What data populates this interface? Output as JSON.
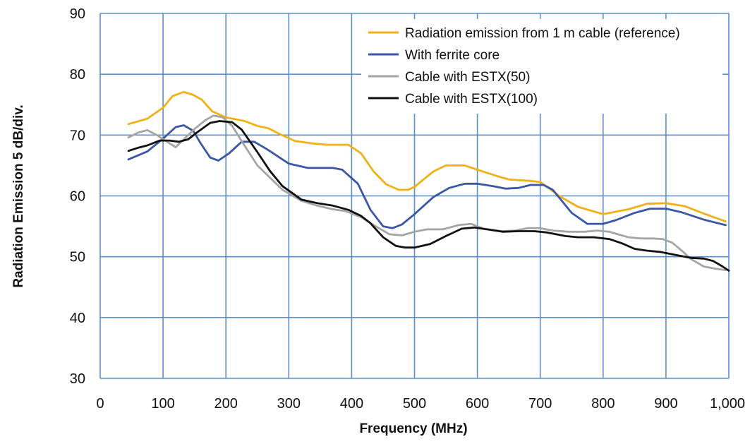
{
  "chart_data": {
    "type": "line",
    "title": "",
    "xlabel": "Frequency (MHz)",
    "ylabel": "Radiation Emission 5 dB/div.",
    "xlim": [
      0,
      1000
    ],
    "ylim": [
      30,
      90
    ],
    "x_ticks": [
      0,
      100,
      200,
      300,
      400,
      500,
      600,
      700,
      800,
      900,
      1000
    ],
    "x_tick_labels": [
      "0",
      "100",
      "200",
      "300",
      "400",
      "500",
      "600",
      "700",
      "800",
      "900",
      "1,000"
    ],
    "y_ticks": [
      30,
      40,
      50,
      60,
      70,
      80,
      90
    ],
    "y_tick_labels": [
      "30",
      "40",
      "50",
      "60",
      "70",
      "80",
      "90"
    ],
    "grid": true,
    "grid_color": "#5b8ec9",
    "legend_position": "top-right",
    "series": [
      {
        "name": "Radiation emission from 1 m cable (reference)",
        "color": "#f0b117",
        "points": [
          [
            45,
            71.8
          ],
          [
            75,
            72.7
          ],
          [
            100,
            74.5
          ],
          [
            115,
            76.4
          ],
          [
            133,
            77.1
          ],
          [
            148,
            76.6
          ],
          [
            162,
            75.8
          ],
          [
            178,
            73.9
          ],
          [
            200,
            72.9
          ],
          [
            230,
            72.3
          ],
          [
            250,
            71.5
          ],
          [
            268,
            71.1
          ],
          [
            285,
            70.2
          ],
          [
            310,
            69
          ],
          [
            340,
            68.6
          ],
          [
            360,
            68.4
          ],
          [
            375,
            68.4
          ],
          [
            395,
            68.4
          ],
          [
            415,
            67
          ],
          [
            435,
            64
          ],
          [
            455,
            61.9
          ],
          [
            475,
            61
          ],
          [
            490,
            61
          ],
          [
            500,
            61.5
          ],
          [
            530,
            64
          ],
          [
            550,
            65
          ],
          [
            580,
            65
          ],
          [
            600,
            64.3
          ],
          [
            630,
            63.3
          ],
          [
            650,
            62.7
          ],
          [
            680,
            62.5
          ],
          [
            700,
            62.3
          ],
          [
            730,
            60
          ],
          [
            760,
            58.2
          ],
          [
            800,
            57
          ],
          [
            840,
            57.8
          ],
          [
            870,
            58.7
          ],
          [
            900,
            58.8
          ],
          [
            930,
            58.3
          ],
          [
            960,
            57.1
          ],
          [
            995,
            55.8
          ]
        ]
      },
      {
        "name": "With ferrite core",
        "color": "#3a56a5",
        "points": [
          [
            45,
            66
          ],
          [
            75,
            67.3
          ],
          [
            100,
            69.4
          ],
          [
            120,
            71.3
          ],
          [
            133,
            71.6
          ],
          [
            148,
            70.7
          ],
          [
            160,
            68.6
          ],
          [
            175,
            66.3
          ],
          [
            188,
            65.8
          ],
          [
            205,
            67
          ],
          [
            225,
            68.9
          ],
          [
            245,
            68.9
          ],
          [
            265,
            67.7
          ],
          [
            300,
            65.3
          ],
          [
            330,
            64.6
          ],
          [
            350,
            64.6
          ],
          [
            370,
            64.6
          ],
          [
            385,
            64.3
          ],
          [
            410,
            62
          ],
          [
            430,
            57.7
          ],
          [
            450,
            55
          ],
          [
            465,
            54.7
          ],
          [
            480,
            55.3
          ],
          [
            500,
            57
          ],
          [
            530,
            59.8
          ],
          [
            555,
            61.3
          ],
          [
            580,
            62
          ],
          [
            600,
            62
          ],
          [
            625,
            61.6
          ],
          [
            645,
            61.2
          ],
          [
            665,
            61.3
          ],
          [
            685,
            61.8
          ],
          [
            705,
            61.8
          ],
          [
            720,
            61
          ],
          [
            750,
            57.2
          ],
          [
            775,
            55.4
          ],
          [
            800,
            55.4
          ],
          [
            820,
            56
          ],
          [
            850,
            57.2
          ],
          [
            875,
            57.9
          ],
          [
            900,
            57.9
          ],
          [
            925,
            57.3
          ],
          [
            960,
            56.1
          ],
          [
            995,
            55.2
          ]
        ]
      },
      {
        "name": "Cable with ESTX(50)",
        "color": "#a5a5a5",
        "points": [
          [
            45,
            69.6
          ],
          [
            60,
            70.4
          ],
          [
            75,
            70.8
          ],
          [
            90,
            70
          ],
          [
            105,
            69
          ],
          [
            120,
            68
          ],
          [
            135,
            69.5
          ],
          [
            150,
            71
          ],
          [
            168,
            72.5
          ],
          [
            180,
            73.2
          ],
          [
            195,
            72.9
          ],
          [
            210,
            71.5
          ],
          [
            225,
            69
          ],
          [
            250,
            65
          ],
          [
            270,
            63
          ],
          [
            290,
            61
          ],
          [
            320,
            59.2
          ],
          [
            345,
            58.4
          ],
          [
            370,
            57.8
          ],
          [
            390,
            57.5
          ],
          [
            415,
            56.5
          ],
          [
            440,
            54.9
          ],
          [
            460,
            53.7
          ],
          [
            480,
            53.5
          ],
          [
            500,
            54.1
          ],
          [
            520,
            54.5
          ],
          [
            545,
            54.5
          ],
          [
            570,
            55.2
          ],
          [
            590,
            55.4
          ],
          [
            610,
            54.6
          ],
          [
            640,
            54.2
          ],
          [
            660,
            54.3
          ],
          [
            680,
            54.7
          ],
          [
            700,
            54.7
          ],
          [
            720,
            54.3
          ],
          [
            745,
            54.1
          ],
          [
            770,
            54.1
          ],
          [
            790,
            54.3
          ],
          [
            810,
            54.1
          ],
          [
            840,
            53.2
          ],
          [
            860,
            53
          ],
          [
            880,
            53
          ],
          [
            895,
            52.9
          ],
          [
            910,
            52.3
          ],
          [
            925,
            51
          ],
          [
            940,
            49.6
          ],
          [
            960,
            48.4
          ],
          [
            980,
            48
          ],
          [
            995,
            47.8
          ]
        ]
      },
      {
        "name": "Cable with ESTX(100)",
        "color": "#111111",
        "points": [
          [
            45,
            67.4
          ],
          [
            60,
            67.9
          ],
          [
            75,
            68.3
          ],
          [
            95,
            69.1
          ],
          [
            110,
            69.1
          ],
          [
            125,
            68.9
          ],
          [
            140,
            69.3
          ],
          [
            155,
            70.5
          ],
          [
            175,
            72
          ],
          [
            190,
            72.3
          ],
          [
            210,
            72.1
          ],
          [
            225,
            70.9
          ],
          [
            250,
            67.2
          ],
          [
            270,
            64.1
          ],
          [
            290,
            61.6
          ],
          [
            320,
            59.4
          ],
          [
            345,
            58.8
          ],
          [
            370,
            58.4
          ],
          [
            395,
            57.7
          ],
          [
            415,
            56.7
          ],
          [
            430,
            55.5
          ],
          [
            450,
            53.2
          ],
          [
            470,
            51.8
          ],
          [
            485,
            51.5
          ],
          [
            500,
            51.5
          ],
          [
            525,
            52.1
          ],
          [
            550,
            53.4
          ],
          [
            575,
            54.6
          ],
          [
            595,
            54.8
          ],
          [
            615,
            54.5
          ],
          [
            640,
            54.1
          ],
          [
            665,
            54.2
          ],
          [
            690,
            54.2
          ],
          [
            710,
            54
          ],
          [
            740,
            53.4
          ],
          [
            760,
            53.2
          ],
          [
            785,
            53.2
          ],
          [
            810,
            52.9
          ],
          [
            830,
            52.2
          ],
          [
            850,
            51.3
          ],
          [
            870,
            51
          ],
          [
            890,
            50.8
          ],
          [
            915,
            50.3
          ],
          [
            940,
            49.8
          ],
          [
            960,
            49.7
          ],
          [
            975,
            49.3
          ],
          [
            990,
            48.4
          ],
          [
            1000,
            47.7
          ]
        ]
      }
    ]
  }
}
